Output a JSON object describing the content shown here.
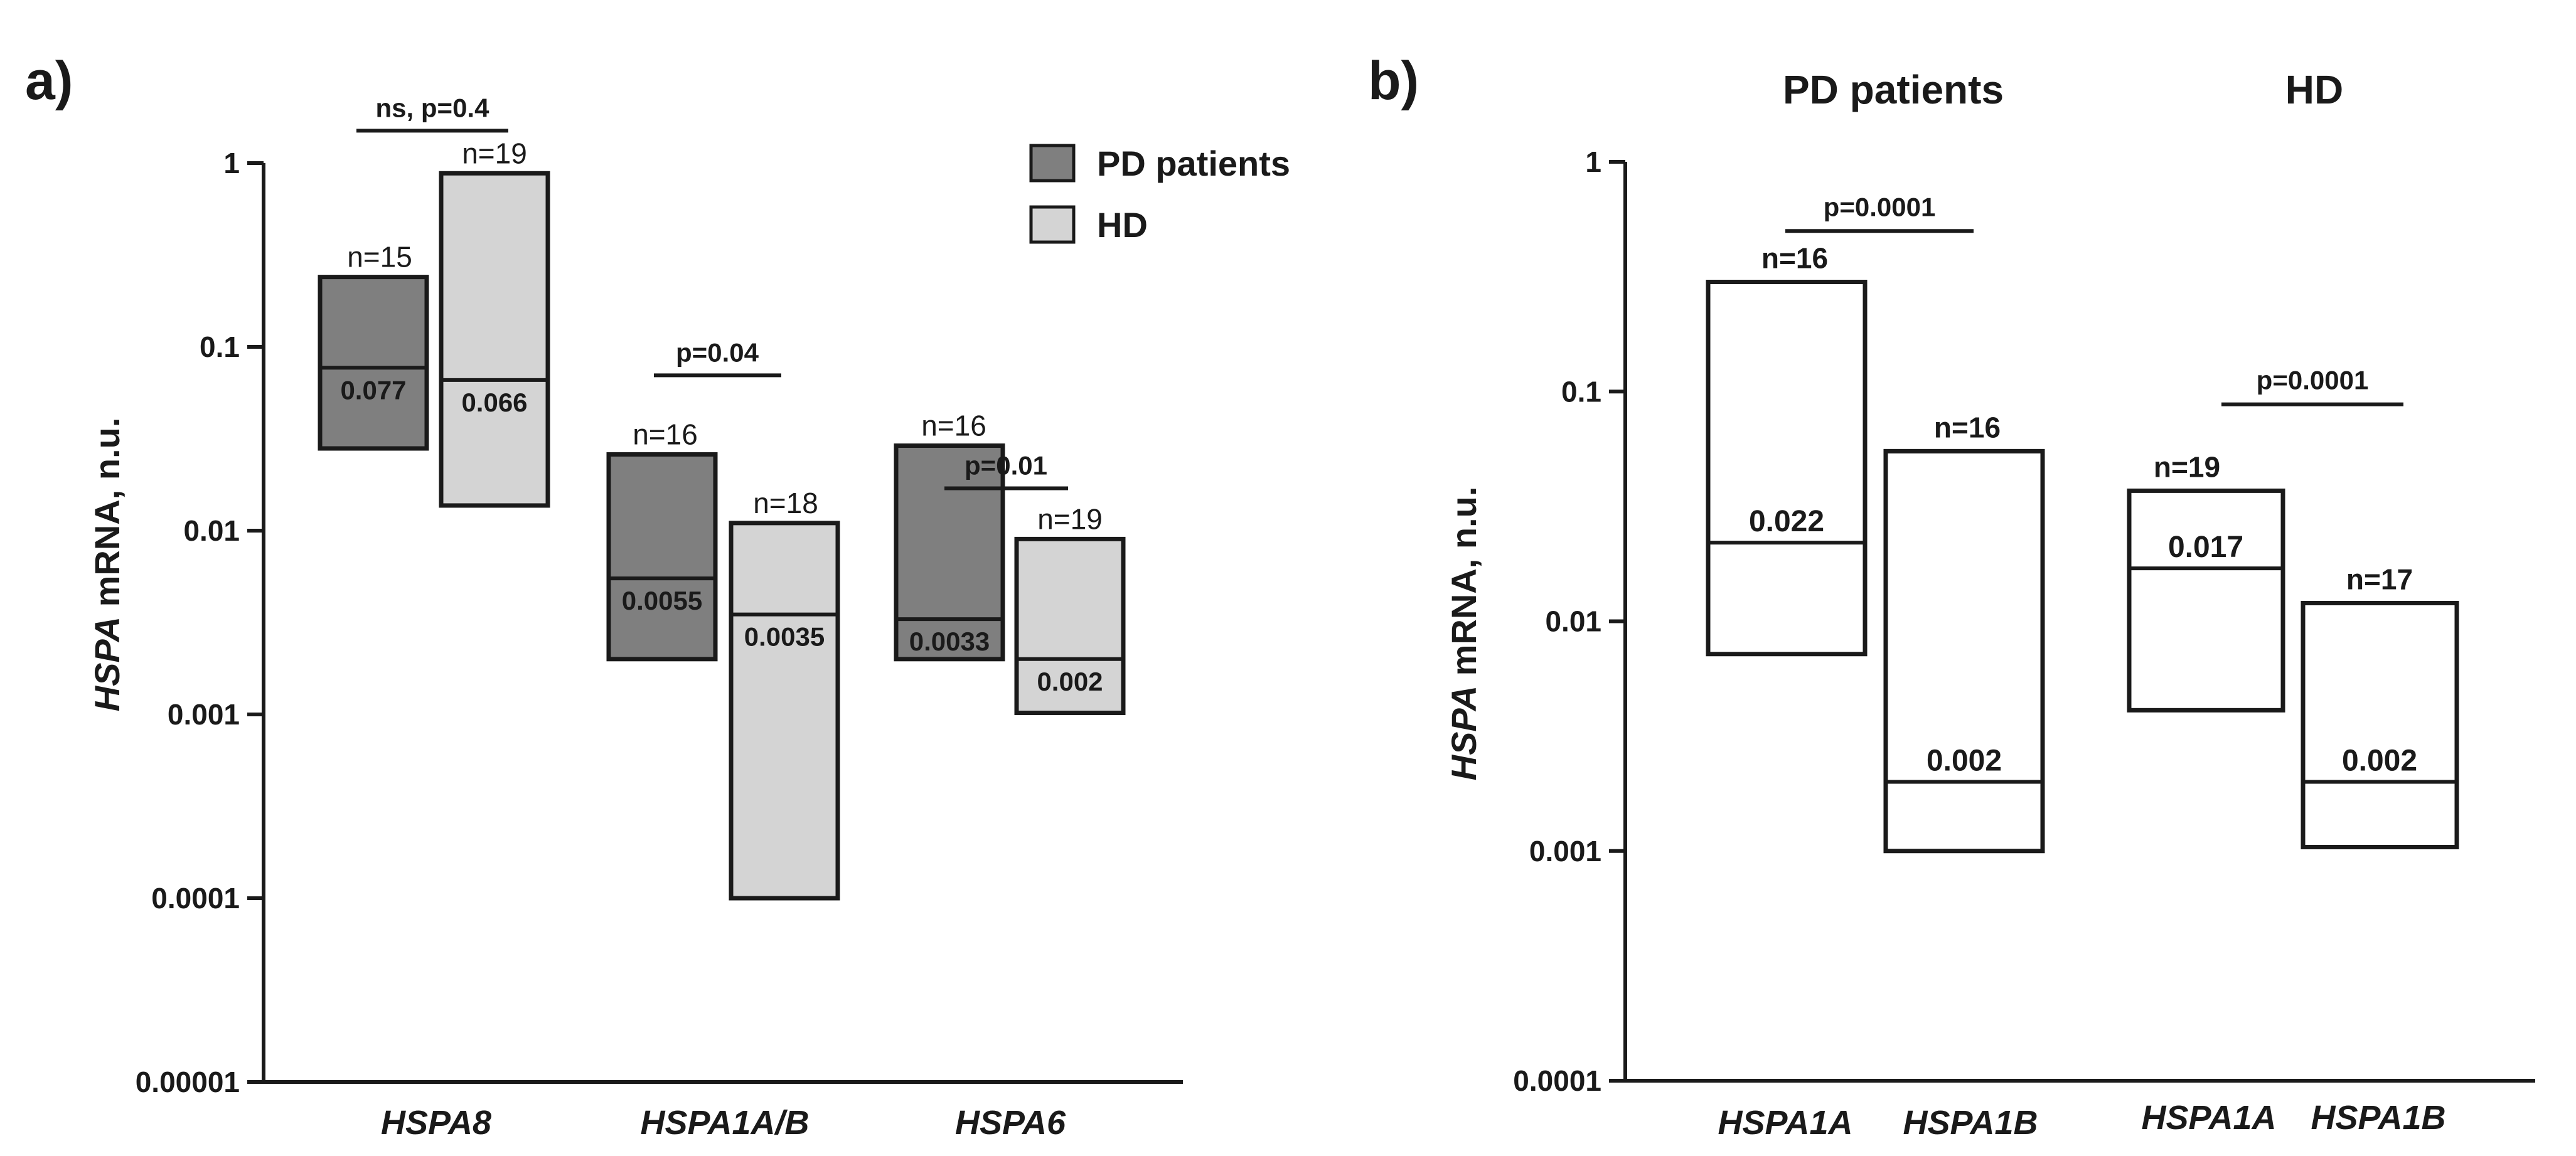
{
  "chart_data": [
    {
      "panel": "a)",
      "type": "bar",
      "scale": "log",
      "ylabel_italic": "HSPA",
      "ylabel_rest": " mRNA, n.u.",
      "ylim": [
        1e-05,
        1
      ],
      "yticks": [
        {
          "value": 1,
          "label": "1"
        },
        {
          "value": 0.1,
          "label": "0.1"
        },
        {
          "value": 0.01,
          "label": "0.01"
        },
        {
          "value": 0.001,
          "label": "0.001"
        },
        {
          "value": 0.0001,
          "label": "0.0001"
        },
        {
          "value": 1e-05,
          "label": "0.00001"
        }
      ],
      "categories": [
        "HSPA8",
        "HSPA1A/B",
        "HSPA6"
      ],
      "legend": [
        {
          "name": "PD patients",
          "color": "#7f7f7f"
        },
        {
          "name": "HD",
          "color": "#d4d4d4"
        }
      ],
      "legend_position": "top-right",
      "series": [
        {
          "name": "PD patients",
          "color": "#7f7f7f",
          "boxes": [
            {
              "category": "HSPA8",
              "min": 0.028,
              "max": 0.24,
              "median": 0.077,
              "median_label": "0.077",
              "n_label": "n=15"
            },
            {
              "category": "HSPA1A/B",
              "min": 0.002,
              "max": 0.026,
              "median": 0.0055,
              "median_label": "0.0055",
              "n_label": "n=16"
            },
            {
              "category": "HSPA6",
              "min": 0.002,
              "max": 0.029,
              "median": 0.0033,
              "median_label": "0.0033",
              "n_label": "n=16"
            }
          ]
        },
        {
          "name": "HD",
          "color": "#d4d4d4",
          "boxes": [
            {
              "category": "HSPA8",
              "min": 0.0137,
              "max": 0.88,
              "median": 0.066,
              "median_label": "0.066",
              "n_label": "n=19"
            },
            {
              "category": "HSPA1A/B",
              "min": 0.0001,
              "max": 0.011,
              "median": 0.0035,
              "median_label": "0.0035",
              "n_label": "n=18"
            },
            {
              "category": "HSPA6",
              "min": 0.00102,
              "max": 0.009,
              "median": 0.002,
              "median_label": "0.002",
              "n_label": "n=19"
            }
          ]
        }
      ],
      "significance": [
        {
          "category": "HSPA8",
          "label": "ns, p=0.4",
          "value": 1.5
        },
        {
          "category": "HSPA1A/B",
          "label": "p=0.04",
          "value": 0.07
        },
        {
          "category": "HSPA6",
          "label": "p=0.01",
          "value": 0.017
        }
      ]
    },
    {
      "panel": "b)",
      "type": "bar",
      "scale": "log",
      "ylabel_italic": "HSPA",
      "ylabel_rest": " mRNA, n.u.",
      "ylim": [
        0.0001,
        1
      ],
      "yticks": [
        {
          "value": 1,
          "label": "1"
        },
        {
          "value": 0.1,
          "label": "0.1"
        },
        {
          "value": 0.01,
          "label": "0.01"
        },
        {
          "value": 0.001,
          "label": "0.001"
        },
        {
          "value": 0.0001,
          "label": "0.0001"
        }
      ],
      "groups": [
        {
          "title": "PD patients",
          "boxes": [
            {
              "category": "HSPA1A",
              "min": 0.0072,
              "max": 0.3,
              "median": 0.022,
              "median_label": "0.022",
              "n_label": "n=16"
            },
            {
              "category": "HSPA1B",
              "min": 0.001,
              "max": 0.055,
              "median": 0.002,
              "median_label": "0.002",
              "n_label": "n=16"
            }
          ],
          "significance": {
            "label": "p=0.0001",
            "value": 0.5
          }
        },
        {
          "title": "HD",
          "boxes": [
            {
              "category": "HSPA1A",
              "min": 0.0041,
              "max": 0.037,
              "median": 0.017,
              "median_label": "0.017",
              "n_label": "n=19"
            },
            {
              "category": "HSPA1B",
              "min": 0.00104,
              "max": 0.012,
              "median": 0.002,
              "median_label": "0.002",
              "n_label": "n=17"
            }
          ],
          "significance": {
            "label": "p=0.0001",
            "value": 0.088
          }
        }
      ]
    }
  ]
}
